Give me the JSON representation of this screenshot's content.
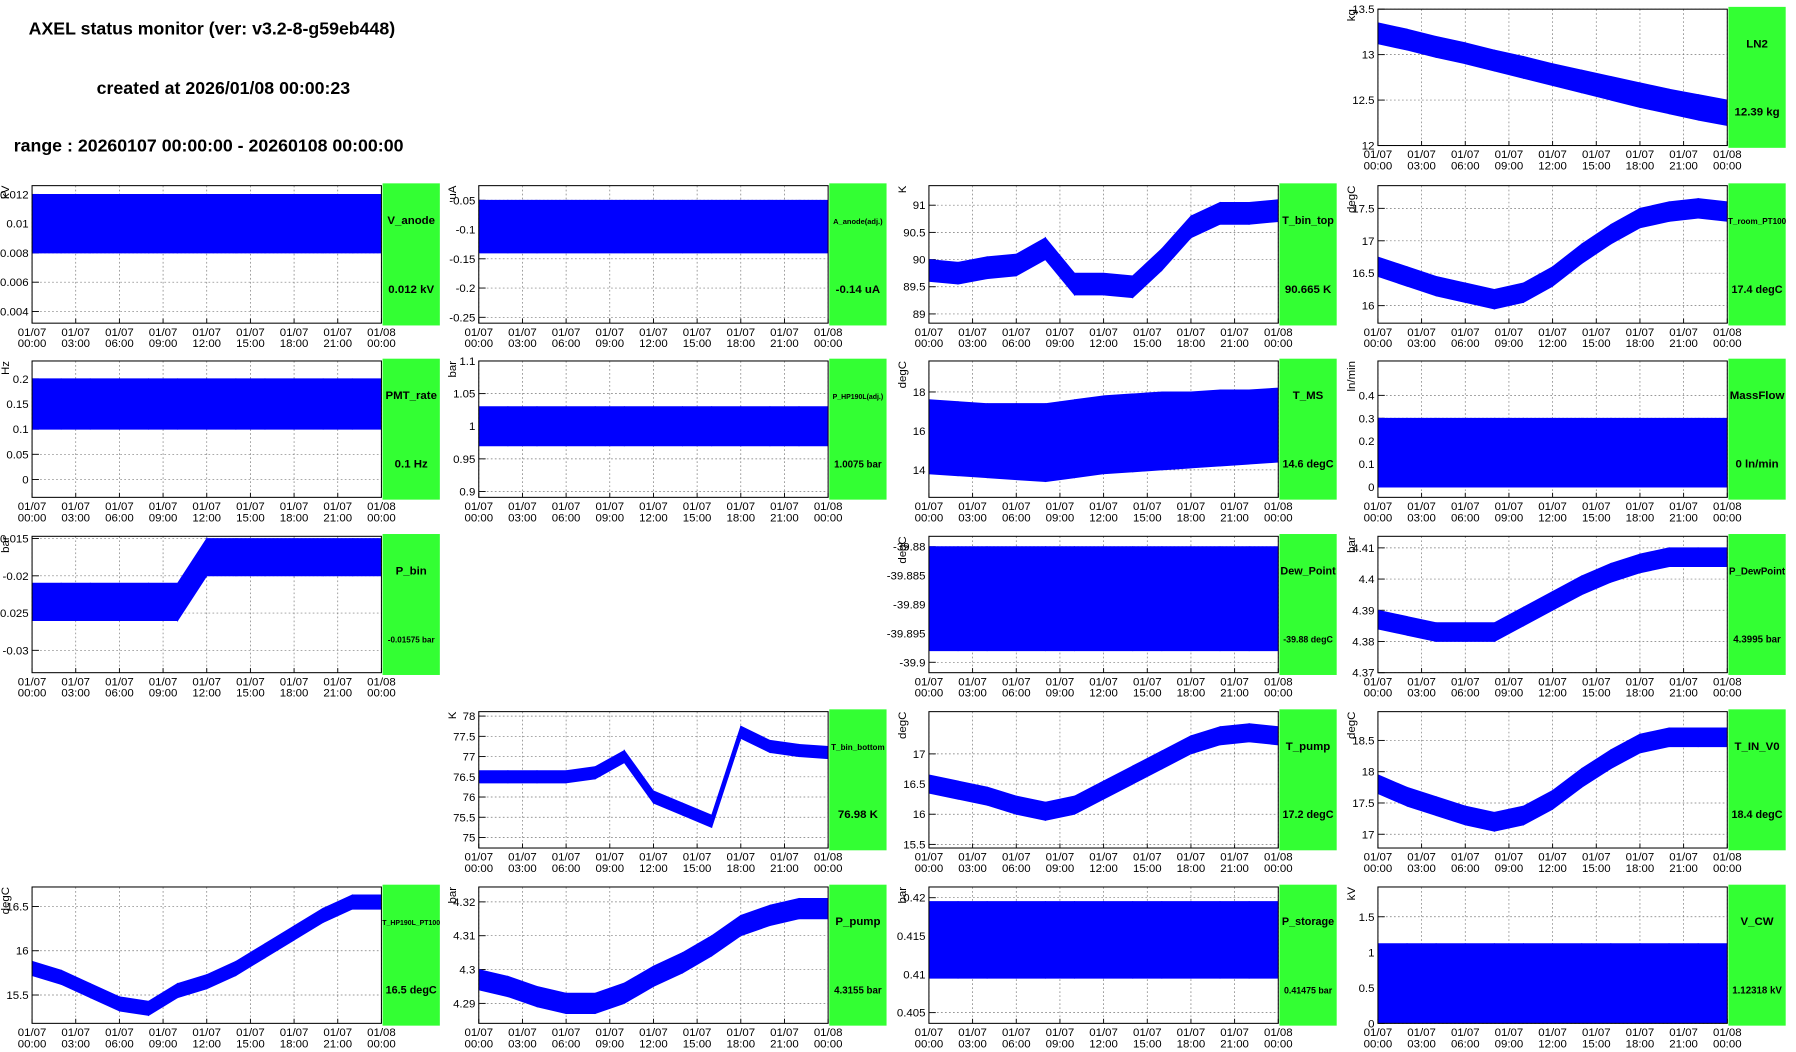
{
  "header": {
    "title": "AXEL status monitor (ver: v3.2-8-g59eb448)",
    "created": "created at 2026/01/08 00:00:23",
    "range": "range : 20260107 00:00:00 - 20260108 00:00:00"
  },
  "time_axis": {
    "xlim": [
      0,
      24
    ],
    "x": [
      0,
      2,
      4,
      6,
      8,
      10,
      12,
      14,
      16,
      18,
      20,
      22,
      24
    ],
    "xticks": [
      {
        "value": 0,
        "label": [
          "01/07",
          "00:00"
        ]
      },
      {
        "value": 3,
        "label": [
          "01/07",
          "03:00"
        ]
      },
      {
        "value": 6,
        "label": [
          "01/07",
          "06:00"
        ]
      },
      {
        "value": 9,
        "label": [
          "01/07",
          "09:00"
        ]
      },
      {
        "value": 12,
        "label": [
          "01/07",
          "12:00"
        ]
      },
      {
        "value": 15,
        "label": [
          "01/07",
          "15:00"
        ]
      },
      {
        "value": 18,
        "label": [
          "01/07",
          "18:00"
        ]
      },
      {
        "value": 21,
        "label": [
          "01/07",
          "21:00"
        ]
      },
      {
        "value": 24,
        "label": [
          "01/08",
          "00:00"
        ]
      }
    ]
  },
  "chart_data": [
    {
      "type": "band",
      "title": "LN2",
      "current": "12.39 kg",
      "ylabel": "kg",
      "color": "#0000ff",
      "grid": true,
      "ylim": [
        12,
        13.5
      ],
      "yticks": [
        12,
        12.5,
        13,
        13.5
      ],
      "low": [
        13.12,
        13.05,
        12.97,
        12.9,
        12.82,
        12.74,
        12.66,
        12.58,
        12.5,
        12.42,
        12.35,
        12.28,
        12.22
      ],
      "high": [
        13.35,
        13.28,
        13.2,
        13.13,
        13.05,
        12.98,
        12.9,
        12.83,
        12.76,
        12.69,
        12.62,
        12.56,
        12.5
      ]
    },
    {
      "type": "band",
      "title": "V_anode",
      "current": "0.012 kV",
      "ylabel": "kV",
      "color": "#0000ff",
      "grid": true,
      "ylim": [
        0.0032,
        0.0126
      ],
      "yticks": [
        0.004,
        0.006,
        0.008,
        0.01,
        0.012
      ],
      "low": [
        0.008,
        0.008,
        0.008,
        0.008,
        0.008,
        0.008,
        0.008,
        0.008,
        0.008,
        0.008,
        0.008,
        0.008,
        0.008
      ],
      "high": [
        0.012,
        0.012,
        0.012,
        0.012,
        0.012,
        0.012,
        0.012,
        0.012,
        0.012,
        0.012,
        0.012,
        0.012,
        0.012
      ]
    },
    {
      "type": "band",
      "title": "A_anode(adj.)",
      "current": "-0.14 uA",
      "ylabel": "uA",
      "color": "#0000ff",
      "grid": true,
      "ylim": [
        -0.26,
        -0.025
      ],
      "yticks": [
        -0.25,
        -0.2,
        -0.15,
        -0.1,
        -0.05
      ],
      "low": [
        -0.14,
        -0.14,
        -0.14,
        -0.14,
        -0.14,
        -0.14,
        -0.14,
        -0.14,
        -0.14,
        -0.14,
        -0.14,
        -0.14,
        -0.14
      ],
      "high": [
        -0.05,
        -0.05,
        -0.05,
        -0.05,
        -0.05,
        -0.05,
        -0.05,
        -0.05,
        -0.05,
        -0.05,
        -0.05,
        -0.05,
        -0.05
      ]
    },
    {
      "type": "band",
      "title": "T_bin_top",
      "current": "90.665 K",
      "ylabel": "K",
      "color": "#0000ff",
      "grid": true,
      "ylim": [
        88.83,
        91.36
      ],
      "yticks": [
        89,
        89.5,
        90,
        90.5,
        91
      ],
      "low": [
        89.6,
        89.55,
        89.65,
        89.7,
        90.0,
        89.35,
        89.35,
        89.3,
        89.8,
        90.4,
        90.65,
        90.65,
        90.7
      ],
      "high": [
        90.0,
        89.95,
        90.05,
        90.1,
        90.4,
        89.75,
        89.75,
        89.7,
        90.2,
        90.8,
        91.05,
        91.05,
        91.1
      ]
    },
    {
      "type": "band",
      "title": "T_room_PT100",
      "current": "17.4 degC",
      "ylabel": "degC",
      "color": "#0000ff",
      "grid": true,
      "ylim": [
        15.73,
        17.85
      ],
      "yticks": [
        16,
        16.5,
        17,
        17.5
      ],
      "low": [
        16.45,
        16.3,
        16.15,
        16.05,
        15.95,
        16.05,
        16.3,
        16.65,
        16.95,
        17.2,
        17.3,
        17.35,
        17.3
      ],
      "high": [
        16.75,
        16.6,
        16.45,
        16.35,
        16.25,
        16.35,
        16.6,
        16.95,
        17.25,
        17.5,
        17.6,
        17.65,
        17.6
      ]
    },
    {
      "type": "band",
      "title": "PMT_rate",
      "current": "0.1 Hz",
      "ylabel": "Hz",
      "color": "#0000ff",
      "grid": true,
      "ylim": [
        -0.0356,
        0.2356
      ],
      "yticks": [
        0,
        0.05,
        0.1,
        0.15,
        0.2
      ],
      "low": [
        0.1,
        0.1,
        0.1,
        0.1,
        0.1,
        0.1,
        0.1,
        0.1,
        0.1,
        0.1,
        0.1,
        0.1,
        0.1
      ],
      "high": [
        0.2,
        0.2,
        0.2,
        0.2,
        0.2,
        0.2,
        0.2,
        0.2,
        0.2,
        0.2,
        0.2,
        0.2,
        0.2
      ]
    },
    {
      "type": "band",
      "title": "P_HP190L(adj.)",
      "current": "1.0075 bar",
      "ylabel": "bar",
      "color": "#0000ff",
      "grid": true,
      "ylim": [
        0.891,
        1.1
      ],
      "yticks": [
        0.9,
        0.95,
        1,
        1.05,
        1.1
      ],
      "low": [
        0.97,
        0.97,
        0.97,
        0.97,
        0.97,
        0.97,
        0.97,
        0.97,
        0.97,
        0.97,
        0.97,
        0.97,
        0.97
      ],
      "high": [
        1.03,
        1.03,
        1.03,
        1.03,
        1.03,
        1.03,
        1.03,
        1.03,
        1.03,
        1.03,
        1.03,
        1.03,
        1.03
      ]
    },
    {
      "type": "band",
      "title": "T_MS",
      "current": "14.6 degC",
      "ylabel": "degC",
      "color": "#0000ff",
      "grid": true,
      "ylim": [
        12.59,
        19.59
      ],
      "yticks": [
        14,
        16,
        18
      ],
      "low": [
        13.8,
        13.7,
        13.6,
        13.5,
        13.4,
        13.6,
        13.8,
        13.9,
        14.0,
        14.1,
        14.2,
        14.3,
        14.4
      ],
      "high": [
        17.6,
        17.5,
        17.4,
        17.4,
        17.4,
        17.6,
        17.8,
        17.9,
        18.0,
        18.0,
        18.1,
        18.1,
        18.2
      ]
    },
    {
      "type": "band",
      "title": "MassFlow",
      "current": "0 ln/min",
      "ylabel": "ln/min",
      "color": "#0000ff",
      "grid": true,
      "ylim": [
        -0.045,
        0.55
      ],
      "yticks": [
        0,
        0.1,
        0.2,
        0.3,
        0.4
      ],
      "low": [
        0,
        0,
        0,
        0,
        0,
        0,
        0,
        0,
        0,
        0,
        0,
        0,
        0
      ],
      "high": [
        0.3,
        0.3,
        0.3,
        0.3,
        0.3,
        0.3,
        0.3,
        0.3,
        0.3,
        0.3,
        0.3,
        0.3,
        0.3
      ]
    },
    {
      "type": "band",
      "title": "P_bin",
      "current": "-0.01575 bar",
      "ylabel": "bar",
      "color": "#0000ff",
      "grid": true,
      "ylim": [
        -0.033,
        -0.0147
      ],
      "yticks": [
        -0.03,
        -0.025,
        -0.02,
        -0.015
      ],
      "low": [
        -0.026,
        -0.026,
        -0.026,
        -0.026,
        -0.026,
        -0.026,
        -0.02,
        -0.02,
        -0.02,
        -0.02,
        -0.02,
        -0.02,
        -0.02
      ],
      "high": [
        -0.021,
        -0.021,
        -0.021,
        -0.021,
        -0.021,
        -0.021,
        -0.015,
        -0.015,
        -0.015,
        -0.015,
        -0.015,
        -0.015,
        -0.015
      ]
    },
    {
      "type": "band",
      "title": "Dew_Point",
      "current": "-39.88 degC",
      "ylabel": "degC",
      "color": "#0000ff",
      "grid": true,
      "ylim": [
        -39.9018,
        -39.8782
      ],
      "yticks": [
        -39.9,
        -39.895,
        -39.89,
        -39.885,
        -39.88
      ],
      "low": [
        -39.898,
        -39.898,
        -39.898,
        -39.898,
        -39.898,
        -39.898,
        -39.898,
        -39.898,
        -39.898,
        -39.898,
        -39.898,
        -39.898,
        -39.898
      ],
      "high": [
        -39.88,
        -39.88,
        -39.88,
        -39.88,
        -39.88,
        -39.88,
        -39.88,
        -39.88,
        -39.88,
        -39.88,
        -39.88,
        -39.88,
        -39.88
      ]
    },
    {
      "type": "band",
      "title": "P_DewPoint",
      "current": "4.3995 bar",
      "ylabel": "bar",
      "color": "#0000ff",
      "grid": true,
      "ylim": [
        4.37,
        4.4137
      ],
      "yticks": [
        4.37,
        4.38,
        4.39,
        4.4,
        4.41
      ],
      "low": [
        4.384,
        4.382,
        4.38,
        4.38,
        4.38,
        4.385,
        4.39,
        4.395,
        4.399,
        4.402,
        4.404,
        4.404,
        4.404
      ],
      "high": [
        4.39,
        4.388,
        4.386,
        4.386,
        4.386,
        4.391,
        4.396,
        4.401,
        4.405,
        4.408,
        4.41,
        4.41,
        4.41
      ]
    },
    {
      "type": "band",
      "title": "T_bin_bottom",
      "current": "76.98 K",
      "ylabel": "K",
      "color": "#0000ff",
      "grid": true,
      "ylim": [
        74.74,
        78.11
      ],
      "yticks": [
        75,
        75.5,
        76,
        76.5,
        77,
        77.5,
        78
      ],
      "low": [
        76.35,
        76.35,
        76.35,
        76.35,
        76.45,
        76.85,
        75.85,
        75.55,
        75.25,
        77.45,
        77.1,
        77.0,
        76.95
      ],
      "high": [
        76.65,
        76.65,
        76.65,
        76.65,
        76.75,
        77.15,
        76.15,
        75.85,
        75.55,
        77.75,
        77.4,
        77.3,
        77.25
      ]
    },
    {
      "type": "band",
      "title": "T_pump",
      "current": "17.2 degC",
      "ylabel": "degC",
      "color": "#0000ff",
      "grid": true,
      "ylim": [
        15.44,
        17.7
      ],
      "yticks": [
        15.5,
        16,
        16.5,
        17
      ],
      "low": [
        16.35,
        16.25,
        16.15,
        16.0,
        15.9,
        16.0,
        16.25,
        16.5,
        16.75,
        17.0,
        17.15,
        17.2,
        17.15
      ],
      "high": [
        16.65,
        16.55,
        16.45,
        16.3,
        16.2,
        16.3,
        16.55,
        16.8,
        17.05,
        17.3,
        17.45,
        17.5,
        17.45
      ]
    },
    {
      "type": "band",
      "title": "T_IN_V0",
      "current": "18.4 degC",
      "ylabel": "degC",
      "color": "#0000ff",
      "grid": true,
      "ylim": [
        16.78,
        18.96
      ],
      "yticks": [
        17,
        17.5,
        18,
        18.5
      ],
      "low": [
        17.65,
        17.45,
        17.3,
        17.15,
        17.05,
        17.15,
        17.4,
        17.75,
        18.05,
        18.3,
        18.4,
        18.4,
        18.4
      ],
      "high": [
        17.95,
        17.75,
        17.6,
        17.45,
        17.35,
        17.45,
        17.7,
        18.05,
        18.35,
        18.6,
        18.7,
        18.7,
        18.7
      ]
    },
    {
      "type": "band",
      "title": "T_HP190L_PT100",
      "current": "16.5 degC",
      "ylabel": "degC",
      "color": "#0000ff",
      "grid": true,
      "ylim": [
        15.18,
        16.72
      ],
      "yticks": [
        15.5,
        16,
        16.5
      ],
      "low": [
        15.72,
        15.62,
        15.47,
        15.32,
        15.27,
        15.47,
        15.57,
        15.72,
        15.92,
        16.12,
        16.32,
        16.47,
        16.47
      ],
      "high": [
        15.88,
        15.78,
        15.63,
        15.48,
        15.43,
        15.63,
        15.73,
        15.88,
        16.08,
        16.28,
        16.48,
        16.63,
        16.63
      ]
    },
    {
      "type": "band",
      "title": "P_pump",
      "current": "4.3155 bar",
      "ylabel": "bar",
      "color": "#0000ff",
      "grid": true,
      "ylim": [
        4.2841,
        4.3244
      ],
      "yticks": [
        4.29,
        4.3,
        4.31,
        4.32
      ],
      "low": [
        4.294,
        4.292,
        4.289,
        4.287,
        4.287,
        4.29,
        4.295,
        4.299,
        4.304,
        4.31,
        4.313,
        4.315,
        4.315
      ],
      "high": [
        4.3,
        4.298,
        4.295,
        4.293,
        4.293,
        4.296,
        4.301,
        4.305,
        4.31,
        4.316,
        4.319,
        4.321,
        4.321
      ]
    },
    {
      "type": "band",
      "title": "P_storage",
      "current": "0.41475 bar",
      "ylabel": "bar",
      "color": "#0000ff",
      "grid": true,
      "ylim": [
        0.4036,
        0.4214
      ],
      "yticks": [
        0.405,
        0.41,
        0.415,
        0.42
      ],
      "low": [
        0.4095,
        0.4095,
        0.4095,
        0.4095,
        0.4095,
        0.4095,
        0.4095,
        0.4095,
        0.4095,
        0.4095,
        0.4095,
        0.4095,
        0.4095
      ],
      "high": [
        0.4195,
        0.4195,
        0.4195,
        0.4195,
        0.4195,
        0.4195,
        0.4195,
        0.4195,
        0.4195,
        0.4195,
        0.4195,
        0.4195,
        0.4195
      ]
    },
    {
      "type": "band",
      "title": "V_CW",
      "current": "1.12318 kV",
      "ylabel": "kV",
      "color": "#0000ff",
      "grid": true,
      "ylim": [
        0,
        1.919
      ],
      "yticks": [
        0,
        0.5,
        1,
        1.5
      ],
      "low": [
        0,
        0,
        0,
        0,
        0,
        0,
        0,
        0,
        0,
        0,
        0,
        0,
        0
      ],
      "high": [
        1.12,
        1.12,
        1.12,
        1.12,
        1.12,
        1.12,
        1.12,
        1.12,
        1.12,
        1.12,
        1.12,
        1.12,
        1.12
      ]
    }
  ]
}
